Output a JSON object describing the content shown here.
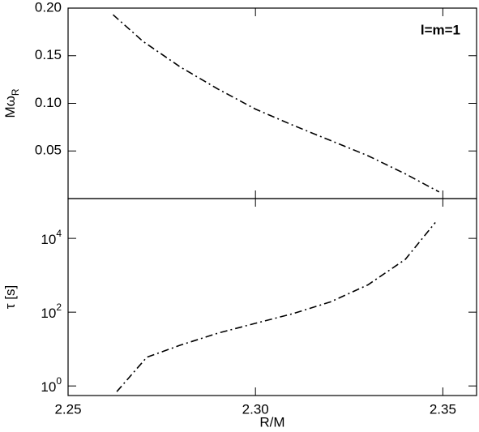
{
  "chart_data": [
    {
      "type": "line",
      "ylabel": {
        "text": "Mω",
        "sub": "R"
      },
      "annotation": "l=m=1",
      "xlim": [
        2.25,
        2.359
      ],
      "ylim": [
        0,
        0.2
      ],
      "yticks": [
        {
          "value": 0.05,
          "label": "0.05"
        },
        {
          "value": 0.1,
          "label": "0.10"
        },
        {
          "value": 0.15,
          "label": "0.15"
        },
        {
          "value": 0.2,
          "label": "0.20"
        }
      ],
      "log_y": false,
      "line_style": "dash-dot",
      "x": [
        2.262,
        2.27,
        2.28,
        2.29,
        2.3,
        2.31,
        2.32,
        2.33,
        2.34,
        2.349
      ],
      "series": [
        {
          "color": "#000000",
          "values": [
            0.193,
            0.165,
            0.138,
            0.115,
            0.094,
            0.077,
            0.061,
            0.045,
            0.026,
            0.007
          ]
        }
      ]
    },
    {
      "type": "line",
      "ylabel": {
        "text": "τ [s]"
      },
      "xlabel": "R/M",
      "xlim": [
        2.25,
        2.359
      ],
      "xticks": [
        {
          "value": 2.25,
          "label": "2.25"
        },
        {
          "value": 2.3,
          "label": "2.30"
        },
        {
          "value": 2.35,
          "label": "2.35"
        }
      ],
      "ylim": [
        0.55,
        120000
      ],
      "yticks": [
        {
          "value": 1,
          "label": "10",
          "exponent": "0"
        },
        {
          "value": 100,
          "label": "10",
          "exponent": "2"
        },
        {
          "value": 10000,
          "label": "10",
          "exponent": "4"
        }
      ],
      "log_y": true,
      "line_style": "dash-dot",
      "x": [
        2.263,
        2.271,
        2.28,
        2.29,
        2.3,
        2.31,
        2.32,
        2.33,
        2.34,
        2.348
      ],
      "series": [
        {
          "color": "#000000",
          "values": [
            0.7,
            6,
            12.8,
            27,
            50,
            91,
            190,
            550,
            2700,
            27000
          ]
        }
      ]
    }
  ]
}
